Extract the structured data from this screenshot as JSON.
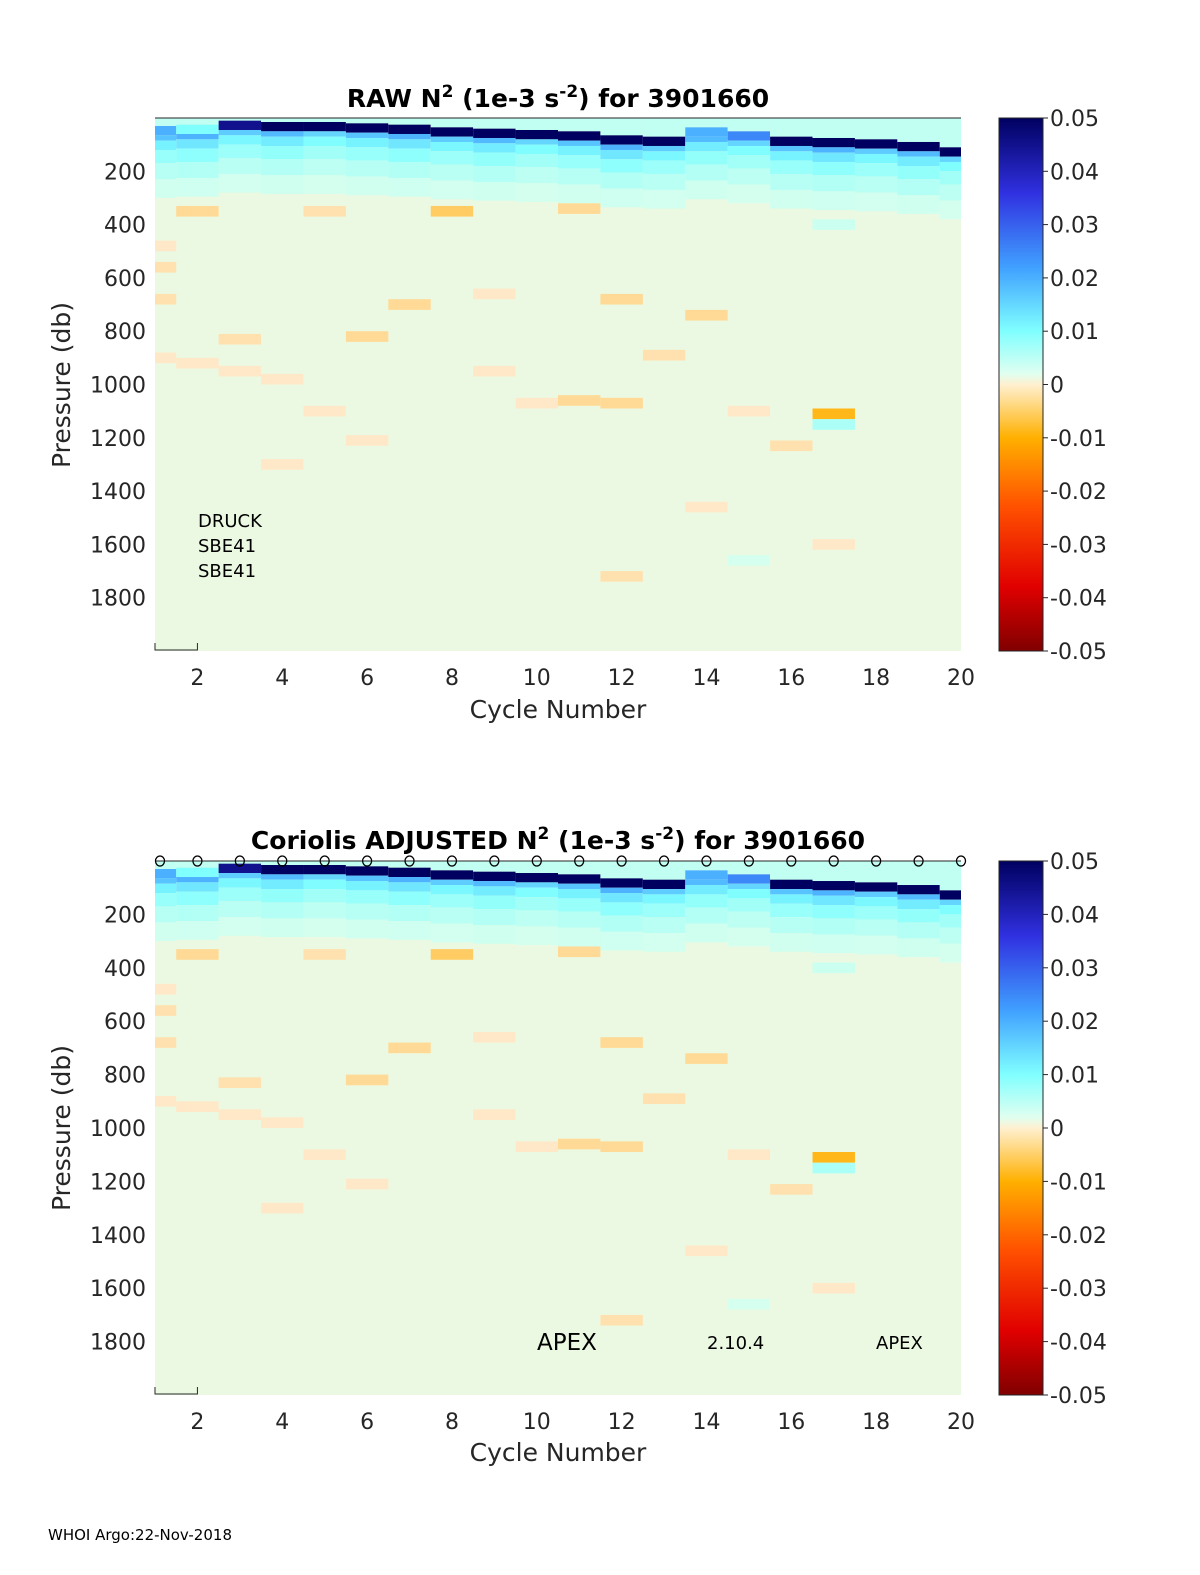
{
  "chart_data": [
    {
      "type": "heatmap",
      "title_prefix": "RAW",
      "title_var": "N",
      "title_sup": "2",
      "title_units_open": " (1e-3 s",
      "title_units_sup": "-2",
      "title_units_close": ") for 3901660",
      "xlabel": "Cycle Number",
      "ylabel": "Pressure (db)",
      "xlim": [
        1,
        20
      ],
      "ylim": [
        0,
        2000
      ],
      "y_reversed": true,
      "xticks": [
        "2",
        "4",
        "6",
        "8",
        "10",
        "12",
        "14",
        "16",
        "18",
        "20"
      ],
      "yticks": [
        "200",
        "400",
        "600",
        "800",
        "1000",
        "1200",
        "1400",
        "1600",
        "1800"
      ],
      "colorbar": {
        "min": -0.05,
        "max": 0.05,
        "tick_labels": [
          "0.05",
          "0.04",
          "0.03",
          "0.02",
          "0.01",
          "0",
          "-0.01",
          "-0.02",
          "-0.03",
          "-0.04",
          "-0.05"
        ]
      },
      "annotations": [
        "DRUCK",
        "SBE41",
        "SBE41"
      ],
      "cycle_markers": false
    },
    {
      "type": "heatmap",
      "title_prefix": "Coriolis  ADJUSTED",
      "title_var": "N",
      "title_sup": "2",
      "title_units_open": " (1e-3 s",
      "title_units_sup": "-2",
      "title_units_close": ") for 3901660",
      "xlabel": "Cycle Number",
      "ylabel": "Pressure (db)",
      "xlim": [
        1,
        20
      ],
      "ylim": [
        0,
        2000
      ],
      "y_reversed": true,
      "xticks": [
        "2",
        "4",
        "6",
        "8",
        "10",
        "12",
        "14",
        "16",
        "18",
        "20"
      ],
      "yticks": [
        "200",
        "400",
        "600",
        "800",
        "1000",
        "1200",
        "1400",
        "1600",
        "1800"
      ],
      "colorbar": {
        "min": -0.05,
        "max": 0.05,
        "tick_labels": [
          "0.05",
          "0.04",
          "0.03",
          "0.02",
          "0.01",
          "0",
          "-0.01",
          "-0.02",
          "-0.03",
          "-0.04",
          "-0.05"
        ]
      },
      "annotations": [
        "APEX",
        "2.10.4",
        "APEX"
      ],
      "cycle_markers": true,
      "cycle_marker_symbol": "o"
    }
  ],
  "field": {
    "background": 0.0006,
    "mixed_layer": [
      {
        "cycle": 1,
        "p": 40,
        "v": 0.02
      },
      {
        "cycle": 2,
        "p": 35,
        "v": 0.01
      },
      {
        "cycle": 3,
        "p": 20,
        "v": 0.045
      },
      {
        "cycle": 4,
        "p": 25,
        "v": 0.05
      },
      {
        "cycle": 5,
        "p": 25,
        "v": 0.05
      },
      {
        "cycle": 6,
        "p": 30,
        "v": 0.05
      },
      {
        "cycle": 7,
        "p": 35,
        "v": 0.05
      },
      {
        "cycle": 8,
        "p": 45,
        "v": 0.05
      },
      {
        "cycle": 9,
        "p": 50,
        "v": 0.05
      },
      {
        "cycle": 10,
        "p": 55,
        "v": 0.05
      },
      {
        "cycle": 11,
        "p": 60,
        "v": 0.05
      },
      {
        "cycle": 12,
        "p": 75,
        "v": 0.05
      },
      {
        "cycle": 13,
        "p": 80,
        "v": 0.05
      },
      {
        "cycle": 14,
        "p": 45,
        "v": 0.02
      },
      {
        "cycle": 15,
        "p": 60,
        "v": 0.025
      },
      {
        "cycle": 16,
        "p": 80,
        "v": 0.05
      },
      {
        "cycle": 17,
        "p": 85,
        "v": 0.05
      },
      {
        "cycle": 18,
        "p": 90,
        "v": 0.05
      },
      {
        "cycle": 19,
        "p": 100,
        "v": 0.05
      },
      {
        "cycle": 20,
        "p": 120,
        "v": 0.05
      }
    ],
    "anomalies": [
      {
        "cycle": 1,
        "p": 480,
        "v": -0.002
      },
      {
        "cycle": 1,
        "p": 560,
        "v": -0.003
      },
      {
        "cycle": 1,
        "p": 680,
        "v": -0.003
      },
      {
        "cycle": 1,
        "p": 900,
        "v": -0.002
      },
      {
        "cycle": 2,
        "p": 350,
        "v": -0.004
      },
      {
        "cycle": 2,
        "p": 920,
        "v": -0.002
      },
      {
        "cycle": 3,
        "p": 830,
        "v": -0.003
      },
      {
        "cycle": 3,
        "p": 950,
        "v": -0.002
      },
      {
        "cycle": 4,
        "p": 980,
        "v": -0.002
      },
      {
        "cycle": 4,
        "p": 1300,
        "v": -0.002
      },
      {
        "cycle": 5,
        "p": 350,
        "v": -0.003
      },
      {
        "cycle": 5,
        "p": 1100,
        "v": -0.002
      },
      {
        "cycle": 6,
        "p": 820,
        "v": -0.004
      },
      {
        "cycle": 6,
        "p": 1210,
        "v": -0.002
      },
      {
        "cycle": 7,
        "p": 700,
        "v": -0.004
      },
      {
        "cycle": 8,
        "p": 350,
        "v": -0.006
      },
      {
        "cycle": 9,
        "p": 660,
        "v": -0.002
      },
      {
        "cycle": 9,
        "p": 950,
        "v": -0.002
      },
      {
        "cycle": 10,
        "p": 1070,
        "v": -0.002
      },
      {
        "cycle": 11,
        "p": 340,
        "v": -0.004
      },
      {
        "cycle": 11,
        "p": 1060,
        "v": -0.004
      },
      {
        "cycle": 12,
        "p": 680,
        "v": -0.004
      },
      {
        "cycle": 12,
        "p": 1070,
        "v": -0.004
      },
      {
        "cycle": 13,
        "p": 890,
        "v": -0.003
      },
      {
        "cycle": 14,
        "p": 740,
        "v": -0.004
      },
      {
        "cycle": 14,
        "p": 1460,
        "v": -0.002
      },
      {
        "cycle": 15,
        "p": 1100,
        "v": -0.002
      },
      {
        "cycle": 16,
        "p": 1230,
        "v": -0.003
      },
      {
        "cycle": 17,
        "p": 1110,
        "v": -0.009
      },
      {
        "cycle": 17,
        "p": 1600,
        "v": -0.002
      },
      {
        "cycle": 17,
        "p": 1150,
        "v": 0.006
      },
      {
        "cycle": 17,
        "p": 400,
        "v": 0.003
      },
      {
        "cycle": 15,
        "p": 1660,
        "v": 0.002
      },
      {
        "cycle": 12,
        "p": 1720,
        "v": -0.003
      }
    ]
  },
  "footer": "WHOI Argo:22-Nov-2018"
}
